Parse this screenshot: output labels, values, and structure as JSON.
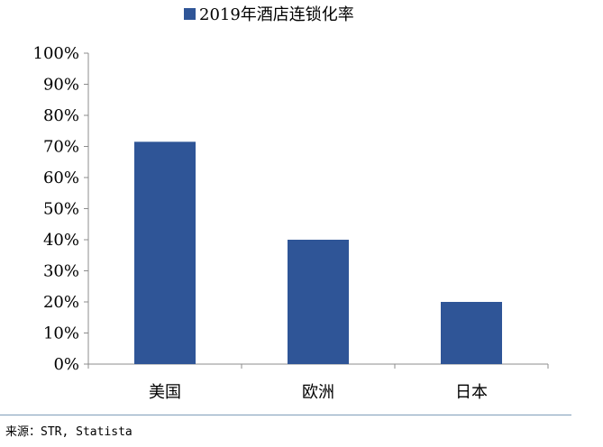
{
  "chart_data": {
    "type": "bar",
    "legend": "2019年酒店连锁化率",
    "legend_position": "top",
    "categories": [
      "美国",
      "欧洲",
      "日本"
    ],
    "values": [
      71.5,
      40,
      20
    ],
    "unit": "%",
    "y_ticks": [
      "0%",
      "10%",
      "20%",
      "30%",
      "40%",
      "50%",
      "60%",
      "70%",
      "80%",
      "90%",
      "100%"
    ],
    "ylim": [
      0,
      100
    ],
    "grid": false,
    "bar_color": "#2F5597"
  },
  "source": "来源：STR, Statista"
}
